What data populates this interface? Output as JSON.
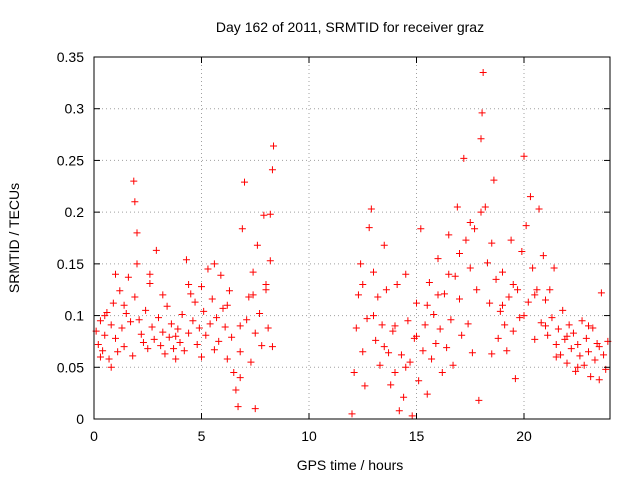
{
  "chart_data": {
    "type": "scatter",
    "title": "Day 162 of 2011, SRMTID for receiver graz",
    "xlabel": "GPS time / hours",
    "ylabel": "SRMTID / TECUs",
    "xlim": [
      0,
      24
    ],
    "ylim": [
      0,
      0.35
    ],
    "xticks": [
      0,
      5,
      10,
      15,
      20
    ],
    "xtick_labels": [
      "0",
      "5",
      "10",
      "15",
      "20"
    ],
    "yticks": [
      0,
      0.05,
      0.1,
      0.15,
      0.2,
      0.25,
      0.3,
      0.35
    ],
    "ytick_labels": [
      "0",
      "0.05",
      "0.1",
      "0.15",
      "0.2",
      "0.25",
      "0.3",
      "0.35"
    ],
    "grid": true,
    "marker": "+",
    "marker_color": "#ff0000",
    "series": [
      {
        "name": "SRMTID",
        "points": [
          [
            0.1,
            0.085
          ],
          [
            0.2,
            0.072
          ],
          [
            0.3,
            0.095
          ],
          [
            0.4,
            0.066
          ],
          [
            0.5,
            0.081
          ],
          [
            0.6,
            0.103
          ],
          [
            0.7,
            0.058
          ],
          [
            0.8,
            0.091
          ],
          [
            0.9,
            0.112
          ],
          [
            1.0,
            0.078
          ],
          [
            1.1,
            0.065
          ],
          [
            1.2,
            0.124
          ],
          [
            1.3,
            0.088
          ],
          [
            1.4,
            0.07
          ],
          [
            1.5,
            0.102
          ],
          [
            1.6,
            0.137
          ],
          [
            1.7,
            0.094
          ],
          [
            1.8,
            0.061
          ],
          [
            1.9,
            0.118
          ],
          [
            1.85,
            0.23
          ],
          [
            1.9,
            0.21
          ],
          [
            2.0,
            0.18
          ],
          [
            2.1,
            0.096
          ],
          [
            2.2,
            0.082
          ],
          [
            2.3,
            0.074
          ],
          [
            2.4,
            0.105
          ],
          [
            2.5,
            0.068
          ],
          [
            2.6,
            0.131
          ],
          [
            2.7,
            0.089
          ],
          [
            2.8,
            0.077
          ],
          [
            2.9,
            0.163
          ],
          [
            3.0,
            0.098
          ],
          [
            3.1,
            0.071
          ],
          [
            3.2,
            0.084
          ],
          [
            3.3,
            0.063
          ],
          [
            3.4,
            0.109
          ],
          [
            3.5,
            0.079
          ],
          [
            3.6,
            0.092
          ],
          [
            3.7,
            0.068
          ],
          [
            3.8,
            0.058
          ],
          [
            3.9,
            0.087
          ],
          [
            4.0,
            0.074
          ],
          [
            4.1,
            0.101
          ],
          [
            4.2,
            0.066
          ],
          [
            4.3,
            0.154
          ],
          [
            4.4,
            0.083
          ],
          [
            4.5,
            0.121
          ],
          [
            4.6,
            0.095
          ],
          [
            4.7,
            0.113
          ],
          [
            4.8,
            0.072
          ],
          [
            4.9,
            0.088
          ],
          [
            5.0,
            0.128
          ],
          [
            5.1,
            0.104
          ],
          [
            5.2,
            0.081
          ],
          [
            5.3,
            0.145
          ],
          [
            5.4,
            0.092
          ],
          [
            5.5,
            0.116
          ],
          [
            5.6,
            0.067
          ],
          [
            5.7,
            0.098
          ],
          [
            5.8,
            0.075
          ],
          [
            5.9,
            0.139
          ],
          [
            6.0,
            0.107
          ],
          [
            6.1,
            0.089
          ],
          [
            6.2,
            0.058
          ],
          [
            6.3,
            0.124
          ],
          [
            6.4,
            0.079
          ],
          [
            6.5,
            0.045
          ],
          [
            6.6,
            0.028
          ],
          [
            6.7,
            0.012
          ],
          [
            6.8,
            0.065
          ],
          [
            6.9,
            0.184
          ],
          [
            7.0,
            0.229
          ],
          [
            7.1,
            0.096
          ],
          [
            7.2,
            0.118
          ],
          [
            7.3,
            0.055
          ],
          [
            7.4,
            0.142
          ],
          [
            7.5,
            0.083
          ],
          [
            7.6,
            0.168
          ],
          [
            7.7,
            0.102
          ],
          [
            7.8,
            0.071
          ],
          [
            7.9,
            0.197
          ],
          [
            8.0,
            0.125
          ],
          [
            8.1,
            0.088
          ],
          [
            8.2,
            0.153
          ],
          [
            8.3,
            0.241
          ],
          [
            8.35,
            0.264
          ],
          [
            8.2,
            0.198
          ],
          [
            7.5,
            0.01
          ],
          [
            6.8,
            0.04
          ],
          [
            0.5,
            0.1
          ],
          [
            0.3,
            0.06
          ],
          [
            0.8,
            0.05
          ],
          [
            1.0,
            0.14
          ],
          [
            1.4,
            0.11
          ],
          [
            2.0,
            0.15
          ],
          [
            2.6,
            0.14
          ],
          [
            3.2,
            0.12
          ],
          [
            3.8,
            0.08
          ],
          [
            4.4,
            0.13
          ],
          [
            5.0,
            0.06
          ],
          [
            5.6,
            0.15
          ],
          [
            6.2,
            0.11
          ],
          [
            6.8,
            0.09
          ],
          [
            7.4,
            0.12
          ],
          [
            8.0,
            0.13
          ],
          [
            8.3,
            0.07
          ],
          [
            12.0,
            0.005
          ],
          [
            12.1,
            0.045
          ],
          [
            12.2,
            0.088
          ],
          [
            12.3,
            0.12
          ],
          [
            12.4,
            0.15
          ],
          [
            12.5,
            0.065
          ],
          [
            12.6,
            0.032
          ],
          [
            12.7,
            0.097
          ],
          [
            12.8,
            0.185
          ],
          [
            12.9,
            0.203
          ],
          [
            13.0,
            0.142
          ],
          [
            13.1,
            0.076
          ],
          [
            13.2,
            0.118
          ],
          [
            13.3,
            0.052
          ],
          [
            13.4,
            0.091
          ],
          [
            13.5,
            0.168
          ],
          [
            13.6,
            0.125
          ],
          [
            13.7,
            0.064
          ],
          [
            13.8,
            0.033
          ],
          [
            13.9,
            0.085
          ],
          [
            14.0,
            0.045
          ],
          [
            14.1,
            0.13
          ],
          [
            14.2,
            0.008
          ],
          [
            14.3,
            0.062
          ],
          [
            14.4,
            0.021
          ],
          [
            14.5,
            0.14
          ],
          [
            14.6,
            0.095
          ],
          [
            14.7,
            0.055
          ],
          [
            14.8,
            0.003
          ],
          [
            14.9,
            0.078
          ],
          [
            15.0,
            0.112
          ],
          [
            15.1,
            0.037
          ],
          [
            15.2,
            0.184
          ],
          [
            15.3,
            0.066
          ],
          [
            15.4,
            0.091
          ],
          [
            15.5,
            0.024
          ],
          [
            15.6,
            0.132
          ],
          [
            15.7,
            0.058
          ],
          [
            15.8,
            0.101
          ],
          [
            15.9,
            0.073
          ],
          [
            16.0,
            0.155
          ],
          [
            16.1,
            0.087
          ],
          [
            16.2,
            0.045
          ],
          [
            16.3,
            0.121
          ],
          [
            16.4,
            0.069
          ],
          [
            16.5,
            0.178
          ],
          [
            16.6,
            0.096
          ],
          [
            16.7,
            0.052
          ],
          [
            16.8,
            0.138
          ],
          [
            16.9,
            0.205
          ],
          [
            17.0,
            0.116
          ],
          [
            17.1,
            0.081
          ],
          [
            17.2,
            0.252
          ],
          [
            17.3,
            0.173
          ],
          [
            17.4,
            0.092
          ],
          [
            17.5,
            0.146
          ],
          [
            17.6,
            0.064
          ],
          [
            17.7,
            0.184
          ],
          [
            17.8,
            0.125
          ],
          [
            17.9,
            0.018
          ],
          [
            18.0,
            0.271
          ],
          [
            18.05,
            0.296
          ],
          [
            18.1,
            0.335
          ],
          [
            18.2,
            0.205
          ],
          [
            18.3,
            0.151
          ],
          [
            18.4,
            0.112
          ],
          [
            18.5,
            0.063
          ],
          [
            18.6,
            0.231
          ],
          [
            18.7,
            0.135
          ],
          [
            18.8,
            0.078
          ],
          [
            18.9,
            0.104
          ],
          [
            19.0,
            0.142
          ],
          [
            19.1,
            0.091
          ],
          [
            19.2,
            0.066
          ],
          [
            19.3,
            0.118
          ],
          [
            19.4,
            0.173
          ],
          [
            19.5,
            0.085
          ],
          [
            19.6,
            0.039
          ],
          [
            19.7,
            0.125
          ],
          [
            19.8,
            0.098
          ],
          [
            19.9,
            0.162
          ],
          [
            20.0,
            0.254
          ],
          [
            20.1,
            0.187
          ],
          [
            20.2,
            0.113
          ],
          [
            20.3,
            0.215
          ],
          [
            20.4,
            0.146
          ],
          [
            20.5,
            0.077
          ],
          [
            20.6,
            0.125
          ],
          [
            20.7,
            0.203
          ],
          [
            20.8,
            0.093
          ],
          [
            20.9,
            0.158
          ],
          [
            21.0,
            0.115
          ],
          [
            21.1,
            0.081
          ],
          [
            21.2,
            0.125
          ],
          [
            21.3,
            0.098
          ],
          [
            21.4,
            0.146
          ],
          [
            21.5,
            0.072
          ],
          [
            21.6,
            0.087
          ],
          [
            21.7,
            0.062
          ],
          [
            21.8,
            0.105
          ],
          [
            21.9,
            0.077
          ],
          [
            22.0,
            0.054
          ],
          [
            22.1,
            0.091
          ],
          [
            22.2,
            0.068
          ],
          [
            22.3,
            0.083
          ],
          [
            22.4,
            0.046
          ],
          [
            22.5,
            0.072
          ],
          [
            22.6,
            0.061
          ],
          [
            22.7,
            0.095
          ],
          [
            22.8,
            0.052
          ],
          [
            22.9,
            0.078
          ],
          [
            23.0,
            0.065
          ],
          [
            23.1,
            0.041
          ],
          [
            23.2,
            0.088
          ],
          [
            23.3,
            0.057
          ],
          [
            23.4,
            0.073
          ],
          [
            23.5,
            0.038
          ],
          [
            23.6,
            0.122
          ],
          [
            23.7,
            0.062
          ],
          [
            23.8,
            0.048
          ],
          [
            23.9,
            0.075
          ],
          [
            12.5,
            0.13
          ],
          [
            13.0,
            0.1
          ],
          [
            13.5,
            0.07
          ],
          [
            14.0,
            0.09
          ],
          [
            14.5,
            0.05
          ],
          [
            15.0,
            0.08
          ],
          [
            15.5,
            0.11
          ],
          [
            16.0,
            0.12
          ],
          [
            16.5,
            0.14
          ],
          [
            17.0,
            0.16
          ],
          [
            17.5,
            0.19
          ],
          [
            18.0,
            0.2
          ],
          [
            18.5,
            0.17
          ],
          [
            19.0,
            0.11
          ],
          [
            19.5,
            0.13
          ],
          [
            20.0,
            0.1
          ],
          [
            20.5,
            0.12
          ],
          [
            21.0,
            0.09
          ],
          [
            21.5,
            0.06
          ],
          [
            22.0,
            0.08
          ],
          [
            22.5,
            0.05
          ],
          [
            23.0,
            0.09
          ],
          [
            23.5,
            0.07
          ]
        ]
      }
    ]
  }
}
